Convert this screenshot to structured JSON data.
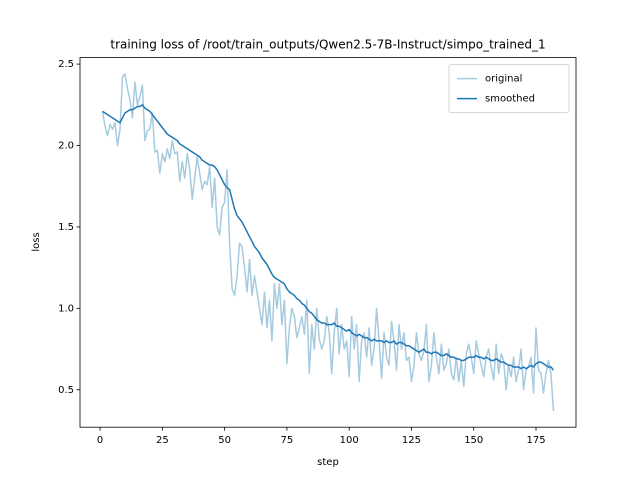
{
  "chart_data": {
    "type": "line",
    "title": "training loss of /root/train_outputs/Qwen2.5-7B-Instruct/simpo_trained_1",
    "x_label": "step",
    "y_label": "loss",
    "x": [
      1,
      2,
      3,
      4,
      5,
      6,
      7,
      8,
      9,
      10,
      11,
      12,
      13,
      14,
      15,
      16,
      17,
      18,
      19,
      20,
      21,
      22,
      23,
      24,
      25,
      26,
      27,
      28,
      29,
      30,
      31,
      32,
      33,
      34,
      35,
      36,
      37,
      38,
      39,
      40,
      41,
      42,
      43,
      44,
      45,
      46,
      47,
      48,
      49,
      50,
      51,
      52,
      53,
      54,
      55,
      56,
      57,
      58,
      59,
      60,
      61,
      62,
      63,
      64,
      65,
      66,
      67,
      68,
      69,
      70,
      71,
      72,
      73,
      74,
      75,
      76,
      77,
      78,
      79,
      80,
      81,
      82,
      83,
      84,
      85,
      86,
      87,
      88,
      89,
      90,
      91,
      92,
      93,
      94,
      95,
      96,
      97,
      98,
      99,
      100,
      101,
      102,
      103,
      104,
      105,
      106,
      107,
      108,
      109,
      110,
      111,
      112,
      113,
      114,
      115,
      116,
      117,
      118,
      119,
      120,
      121,
      122,
      123,
      124,
      125,
      126,
      127,
      128,
      129,
      130,
      131,
      132,
      133,
      134,
      135,
      136,
      137,
      138,
      139,
      140,
      141,
      142,
      143,
      144,
      145,
      146,
      147,
      148,
      149,
      150,
      151,
      152,
      153,
      154,
      155,
      156,
      157,
      158,
      159,
      160,
      161,
      162,
      163,
      164,
      165,
      166,
      167,
      168,
      169,
      170,
      171,
      172,
      173,
      174,
      175,
      176,
      177,
      178,
      179,
      180,
      181,
      182
    ],
    "series": [
      {
        "name": "original",
        "color": "#a6cbe0",
        "values": [
          2.21,
          2.12,
          2.06,
          2.13,
          2.1,
          2.14,
          2.0,
          2.1,
          2.42,
          2.44,
          2.35,
          2.28,
          2.17,
          2.39,
          2.25,
          2.3,
          2.37,
          2.03,
          2.09,
          2.1,
          2.2,
          1.96,
          1.97,
          1.83,
          1.95,
          1.9,
          1.98,
          1.92,
          2.03,
          1.95,
          1.96,
          1.78,
          1.9,
          1.8,
          1.95,
          1.85,
          1.67,
          1.8,
          1.93,
          1.83,
          1.73,
          1.78,
          1.76,
          1.87,
          1.62,
          1.8,
          1.5,
          1.45,
          1.62,
          1.65,
          1.85,
          1.4,
          1.12,
          1.08,
          1.2,
          1.4,
          1.38,
          1.25,
          1.1,
          1.3,
          1.08,
          1.2,
          1.1,
          1.0,
          0.9,
          1.1,
          0.88,
          1.05,
          0.8,
          1.15,
          1.0,
          1.15,
          0.9,
          1.05,
          0.66,
          0.88,
          1.0,
          0.95,
          0.82,
          0.88,
          0.95,
          0.84,
          1.05,
          0.6,
          0.9,
          0.75,
          1.0,
          0.81,
          0.75,
          0.8,
          0.95,
          0.85,
          0.6,
          0.85,
          1.0,
          0.72,
          0.9,
          0.75,
          0.8,
          0.58,
          0.95,
          0.75,
          0.9,
          0.55,
          0.8,
          0.85,
          0.7,
          0.88,
          0.65,
          0.75,
          1.0,
          0.8,
          0.57,
          0.85,
          0.7,
          0.65,
          0.92,
          0.8,
          0.62,
          0.9,
          0.75,
          0.85,
          0.68,
          0.7,
          0.55,
          0.65,
          0.85,
          0.72,
          0.68,
          0.74,
          0.9,
          0.55,
          0.65,
          0.85,
          0.7,
          0.6,
          0.78,
          0.62,
          0.66,
          0.75,
          0.6,
          0.56,
          0.7,
          0.55,
          0.68,
          0.52,
          0.72,
          0.78,
          0.7,
          0.6,
          0.8,
          0.72,
          0.65,
          0.58,
          0.7,
          0.75,
          0.64,
          0.56,
          0.78,
          0.6,
          0.72,
          0.68,
          0.5,
          0.65,
          0.58,
          0.7,
          0.55,
          0.62,
          0.75,
          0.5,
          0.62,
          0.64,
          0.7,
          0.48,
          0.88,
          0.62,
          0.6,
          0.48,
          0.6,
          0.68,
          0.6,
          0.37
        ]
      },
      {
        "name": "smoothed",
        "color": "#1f77b4",
        "values": [
          2.21,
          2.2,
          2.19,
          2.18,
          2.17,
          2.16,
          2.15,
          2.14,
          2.17,
          2.2,
          2.21,
          2.22,
          2.22,
          2.23,
          2.24,
          2.24,
          2.25,
          2.23,
          2.22,
          2.21,
          2.19,
          2.17,
          2.15,
          2.13,
          2.11,
          2.09,
          2.07,
          2.06,
          2.05,
          2.04,
          2.03,
          2.01,
          2.0,
          1.99,
          1.98,
          1.97,
          1.96,
          1.95,
          1.94,
          1.93,
          1.91,
          1.9,
          1.89,
          1.88,
          1.88,
          1.87,
          1.85,
          1.82,
          1.79,
          1.76,
          1.74,
          1.73,
          1.67,
          1.61,
          1.57,
          1.55,
          1.53,
          1.5,
          1.47,
          1.44,
          1.41,
          1.38,
          1.36,
          1.34,
          1.31,
          1.29,
          1.27,
          1.24,
          1.21,
          1.19,
          1.18,
          1.17,
          1.16,
          1.15,
          1.12,
          1.1,
          1.09,
          1.08,
          1.06,
          1.05,
          1.03,
          1.02,
          1.0,
          0.98,
          0.97,
          0.95,
          0.93,
          0.92,
          0.91,
          0.91,
          0.9,
          0.9,
          0.9,
          0.91,
          0.89,
          0.89,
          0.88,
          0.87,
          0.86,
          0.87,
          0.85,
          0.84,
          0.83,
          0.84,
          0.83,
          0.82,
          0.82,
          0.81,
          0.8,
          0.81,
          0.8,
          0.8,
          0.8,
          0.79,
          0.8,
          0.79,
          0.79,
          0.8,
          0.78,
          0.79,
          0.79,
          0.78,
          0.77,
          0.77,
          0.76,
          0.75,
          0.74,
          0.73,
          0.74,
          0.75,
          0.73,
          0.73,
          0.72,
          0.73,
          0.73,
          0.72,
          0.71,
          0.71,
          0.72,
          0.71,
          0.7,
          0.7,
          0.69,
          0.69,
          0.68,
          0.68,
          0.69,
          0.7,
          0.7,
          0.7,
          0.71,
          0.7,
          0.7,
          0.69,
          0.7,
          0.69,
          0.68,
          0.68,
          0.69,
          0.68,
          0.67,
          0.67,
          0.66,
          0.65,
          0.65,
          0.64,
          0.64,
          0.64,
          0.63,
          0.64,
          0.63,
          0.64,
          0.65,
          0.64,
          0.66,
          0.67,
          0.67,
          0.66,
          0.65,
          0.64,
          0.64,
          0.62
        ]
      }
    ],
    "xlim": [
      -8.05,
      191.05
    ],
    "xticks": [
      0,
      25,
      50,
      75,
      100,
      125,
      150,
      175
    ],
    "ylim": [
      0.27,
      2.54
    ],
    "yticks": [
      0.5,
      {
        "value": 1,
        "label": "1.0"
      },
      1.5,
      {
        "value": 2,
        "label": "2.0"
      },
      2.5
    ],
    "grid": false,
    "legend": "upper right"
  }
}
